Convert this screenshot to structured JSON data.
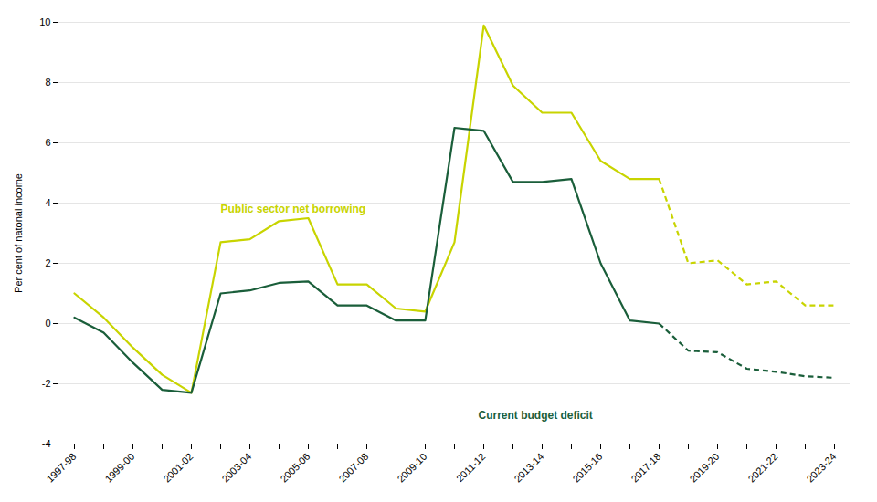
{
  "chart_data": {
    "type": "line",
    "categories": [
      "1997-98",
      null,
      "1999-00",
      null,
      "2001-02",
      null,
      "2003-04",
      null,
      "2005-06",
      null,
      "2007-08",
      null,
      "2009-10",
      null,
      "2011-12",
      null,
      "2013-14",
      null,
      "2015-16",
      null,
      "2017-18",
      null,
      "2019-20",
      null,
      "2021-22",
      null,
      "2023-24"
    ],
    "series": [
      {
        "name": "Public sector net borrowing",
        "color": "#c8d400",
        "line_style": "solid",
        "values": [
          1.0,
          0.2,
          -0.8,
          -1.7,
          -2.3,
          2.7,
          2.8,
          3.4,
          3.5,
          1.3,
          1.3,
          0.5,
          0.4,
          2.7,
          9.9,
          7.9,
          7.0,
          7.0,
          5.4,
          4.8,
          4.8,
          null,
          null,
          null,
          null,
          null,
          null
        ]
      },
      {
        "color": "#c8d400",
        "line_style": "dashed",
        "values": [
          null,
          null,
          null,
          null,
          null,
          null,
          null,
          null,
          null,
          null,
          null,
          null,
          null,
          null,
          null,
          null,
          null,
          null,
          null,
          null,
          4.8,
          2.0,
          2.1,
          1.3,
          1.4,
          0.6,
          0.6
        ]
      },
      {
        "name": "Current budget deficit",
        "color": "#1a5e3a",
        "line_style": "solid",
        "values": [
          0.2,
          -0.3,
          -1.3,
          -2.2,
          -2.3,
          1.0,
          1.1,
          1.35,
          1.4,
          0.6,
          0.6,
          0.1,
          0.1,
          6.5,
          6.4,
          4.7,
          4.7,
          4.8,
          2.0,
          0.1,
          0.0,
          null,
          null,
          null,
          null,
          null,
          null
        ]
      },
      {
        "color": "#1a5e3a",
        "line_style": "dashed",
        "values": [
          null,
          null,
          null,
          null,
          null,
          null,
          null,
          null,
          null,
          null,
          null,
          null,
          null,
          null,
          null,
          null,
          null,
          null,
          null,
          null,
          0.0,
          -0.9,
          -0.95,
          -1.5,
          -1.6,
          -1.75,
          -1.8
        ]
      }
    ],
    "ylabel": "Per cent of natonal income",
    "ylim": [
      -4,
      10
    ],
    "yticks": [
      -4,
      -2,
      0,
      2,
      4,
      6,
      8,
      10
    ],
    "grid": true
  }
}
